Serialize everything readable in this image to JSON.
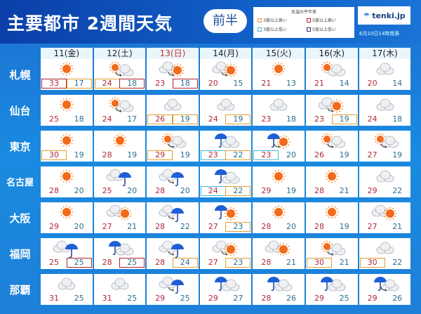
{
  "header": {
    "title": "主要都市 2週間天気",
    "period": "前半",
    "brand": "tenki.jp",
    "issued": "6月10日14時発表"
  },
  "legend": {
    "title": "気温の平年差",
    "items": [
      {
        "label": "3度以上高い",
        "color": "#e0a030"
      },
      {
        "label": "5度以上高い",
        "color": "#b02030"
      },
      {
        "label": "3度以上低い",
        "color": "#40b8d8"
      },
      {
        "label": "5度以上低い",
        "color": "#303080"
      }
    ]
  },
  "colors": {
    "o": "#e0a030",
    "r": "#b02030",
    "c": "#40b8d8",
    "n": "#303080"
  },
  "days": [
    {
      "label": "11(金)"
    },
    {
      "label": "12(土)"
    },
    {
      "label": "13(日)",
      "holiday": true
    },
    {
      "label": "14(月)"
    },
    {
      "label": "15(火)"
    },
    {
      "label": "16(水)"
    },
    {
      "label": "17(木)"
    }
  ],
  "cities": [
    {
      "name": "札幌",
      "cells": [
        {
          "icon": [
            "sun"
          ],
          "hi": "33",
          "lo": "17",
          "hb": "r",
          "lb": "o"
        },
        {
          "icon": [
            "sun",
            "cloud",
            "arrow"
          ],
          "hi": "24",
          "lo": "18",
          "hb": "o",
          "lb": "r"
        },
        {
          "icon": [
            "cloud",
            "sun",
            "arrow"
          ],
          "hi": "23",
          "lo": "18",
          "lb": "r"
        },
        {
          "icon": [
            "cloud",
            "sun",
            "arrow"
          ],
          "hi": "20",
          "lo": "15"
        },
        {
          "icon": [
            "sun"
          ],
          "hi": "21",
          "lo": "13"
        },
        {
          "icon": [
            "sun",
            "cloud"
          ],
          "hi": "21",
          "lo": "14"
        },
        {
          "icon": [
            "cloud"
          ],
          "hi": "20",
          "lo": "14"
        }
      ]
    },
    {
      "name": "仙台",
      "cells": [
        {
          "icon": [
            "sun"
          ],
          "hi": "25",
          "lo": "18"
        },
        {
          "icon": [
            "sun",
            "cloud",
            "arrow"
          ],
          "hi": "24",
          "lo": "17"
        },
        {
          "icon": [
            "cloud"
          ],
          "hi": "26",
          "lo": "19",
          "hb": "o",
          "lb": "o"
        },
        {
          "icon": [
            "cloud"
          ],
          "hi": "24",
          "lo": "19",
          "lb": "o"
        },
        {
          "icon": [
            "cloud"
          ],
          "hi": "23",
          "lo": "18"
        },
        {
          "icon": [
            "cloud",
            "sun",
            "arrow"
          ],
          "hi": "23",
          "lo": "19",
          "lb": "o"
        },
        {
          "icon": [
            "cloud"
          ],
          "hi": "24",
          "lo": "18"
        }
      ]
    },
    {
      "name": "東京",
      "cells": [
        {
          "icon": [
            "sun"
          ],
          "hi": "30",
          "lo": "19",
          "hb": "o"
        },
        {
          "icon": [
            "sun"
          ],
          "hi": "28",
          "lo": "19"
        },
        {
          "icon": [
            "sun",
            "cloud",
            "arrow"
          ],
          "hi": "29",
          "lo": "19",
          "hb": "o"
        },
        {
          "icon": [
            "rain",
            "cloud"
          ],
          "hi": "23",
          "lo": "22",
          "hb": "c",
          "lb": "o"
        },
        {
          "icon": [
            "rain",
            "sun",
            "arrow"
          ],
          "hi": "23",
          "lo": "20",
          "hb": "c"
        },
        {
          "icon": [
            "sun",
            "cloud",
            "arrow"
          ],
          "hi": "26",
          "lo": "19"
        },
        {
          "icon": [
            "sun",
            "cloud",
            "arrow"
          ],
          "hi": "27",
          "lo": "19"
        }
      ]
    },
    {
      "name": "名古屋",
      "cells": [
        {
          "icon": [
            "sun"
          ],
          "hi": "28",
          "lo": "20"
        },
        {
          "icon": [
            "cloud",
            "rain"
          ],
          "hi": "25",
          "lo": "20"
        },
        {
          "icon": [
            "cloud",
            "rain",
            "arrow"
          ],
          "hi": "28",
          "lo": "20"
        },
        {
          "icon": [
            "rain",
            "cloud"
          ],
          "hi": "24",
          "lo": "22",
          "hb": "c",
          "lb": "o"
        },
        {
          "icon": [
            "sun"
          ],
          "hi": "29",
          "lo": "19"
        },
        {
          "icon": [
            "sun"
          ],
          "hi": "28",
          "lo": "21"
        },
        {
          "icon": [
            "cloud"
          ],
          "hi": "29",
          "lo": "22"
        }
      ]
    },
    {
      "name": "大阪",
      "cells": [
        {
          "icon": [
            "sun"
          ],
          "hi": "29",
          "lo": "20"
        },
        {
          "icon": [
            "cloud",
            "sun"
          ],
          "hi": "27",
          "lo": "21"
        },
        {
          "icon": [
            "cloud",
            "rain",
            "arrow"
          ],
          "hi": "28",
          "lo": "22"
        },
        {
          "icon": [
            "rain",
            "sun"
          ],
          "hi": "27",
          "lo": "23",
          "lb": "o"
        },
        {
          "icon": [
            "sun"
          ],
          "hi": "28",
          "lo": "20"
        },
        {
          "icon": [
            "sun"
          ],
          "hi": "28",
          "lo": "19"
        },
        {
          "icon": [
            "cloud",
            "sun"
          ],
          "hi": "27",
          "lo": "21"
        }
      ]
    },
    {
      "name": "福岡",
      "cells": [
        {
          "icon": [
            "cloud",
            "rain"
          ],
          "hi": "25",
          "lo": "25",
          "lb": "r"
        },
        {
          "icon": [
            "rain",
            "cloud"
          ],
          "hi": "28",
          "lo": "25",
          "lb": "r"
        },
        {
          "icon": [
            "cloud",
            "rain",
            "arrow"
          ],
          "hi": "28",
          "lo": "24",
          "lb": "o"
        },
        {
          "icon": [
            "cloud",
            "sun",
            "arrow"
          ],
          "hi": "27",
          "lo": "23",
          "lb": "o"
        },
        {
          "icon": [
            "cloud",
            "sun"
          ],
          "hi": "28",
          "lo": "21"
        },
        {
          "icon": [
            "sun",
            "cloud",
            "arrow"
          ],
          "hi": "30",
          "lo": "21",
          "hb": "o"
        },
        {
          "icon": [
            "cloud"
          ],
          "hi": "30",
          "lo": "22",
          "hb": "o"
        }
      ]
    },
    {
      "name": "那覇",
      "cells": [
        {
          "icon": [
            "cloud"
          ],
          "hi": "31",
          "lo": "25"
        },
        {
          "icon": [
            "cloud"
          ],
          "hi": "31",
          "lo": "25"
        },
        {
          "icon": [
            "cloud",
            "rain",
            "arrow"
          ],
          "hi": "29",
          "lo": "25"
        },
        {
          "icon": [
            "rain",
            "cloud"
          ],
          "hi": "29",
          "lo": "27"
        },
        {
          "icon": [
            "rain",
            "cloud"
          ],
          "hi": "28",
          "lo": "26"
        },
        {
          "icon": [
            "rain",
            "cloud"
          ],
          "hi": "29",
          "lo": "25"
        },
        {
          "icon": [
            "rain",
            "cloud",
            "arrow"
          ],
          "hi": "29",
          "lo": "26"
        }
      ]
    }
  ]
}
